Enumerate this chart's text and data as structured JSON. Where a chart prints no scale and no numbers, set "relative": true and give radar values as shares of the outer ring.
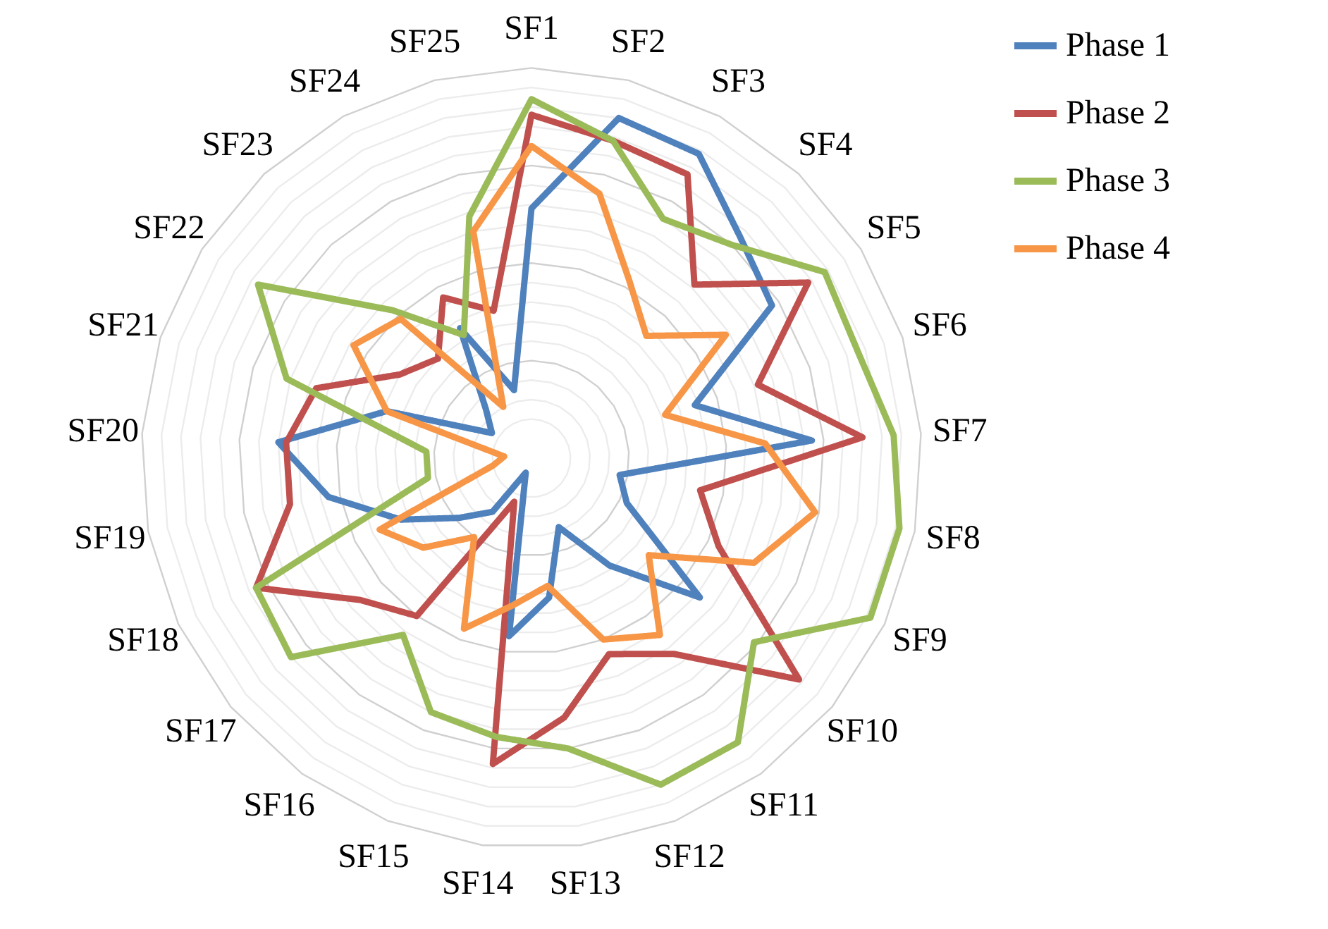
{
  "chart_data": {
    "type": "radar",
    "relative": true,
    "grid": true,
    "legend": "right",
    "line_style": "solid",
    "categories": [
      "SF1",
      "SF2",
      "SF3",
      "SF4",
      "SF5",
      "SF6",
      "SF7",
      "SF8",
      "SF9",
      "SF10",
      "SF11",
      "SF12",
      "SF13",
      "SF14",
      "SF15",
      "SF16",
      "SF17",
      "SF18",
      "SF19",
      "SF20",
      "SF21",
      "SF22",
      "SF23",
      "SF24",
      "SF25"
    ],
    "series": [
      {
        "name": "Phase 1",
        "color": "#4f81bd",
        "values": [
          0.64,
          0.9,
          0.89,
          0.78,
          0.73,
          0.44,
          0.72,
          0.23,
          0.27,
          0.56,
          0.34,
          0.19,
          0.36,
          0.46,
          0.04,
          0.17,
          0.24,
          0.37,
          0.53,
          0.65,
          0.39,
          0.12,
          0.17,
          0.38,
          0.18
        ]
      },
      {
        "name": "Phase 2",
        "color": "#c0504d",
        "values": [
          0.88,
          0.84,
          0.83,
          0.61,
          0.84,
          0.61,
          0.85,
          0.44,
          0.53,
          0.89,
          0.62,
          0.54,
          0.67,
          0.79,
          0.12,
          0.5,
          0.57,
          0.78,
          0.63,
          0.63,
          0.58,
          0.4,
          0.35,
          0.47,
          0.39
        ]
      },
      {
        "name": "Phase 3",
        "color": "#9bbb59",
        "values": [
          0.92,
          0.84,
          0.7,
          0.75,
          0.89,
          0.88,
          0.93,
          0.96,
          0.96,
          0.74,
          0.9,
          0.9,
          0.75,
          0.72,
          0.7,
          0.56,
          0.8,
          0.78,
          0.27,
          0.27,
          0.66,
          0.83,
          0.52,
          0.36,
          0.64
        ]
      },
      {
        "name": "Phase 4",
        "color": "#f79646",
        "values": [
          0.8,
          0.7,
          0.52,
          0.43,
          0.59,
          0.36,
          0.6,
          0.74,
          0.63,
          0.39,
          0.56,
          0.5,
          0.33,
          0.38,
          0.47,
          0.25,
          0.36,
          0.43,
          0.1,
          0.07,
          0.39,
          0.54,
          0.49,
          0.15,
          0.6
        ]
      }
    ]
  }
}
